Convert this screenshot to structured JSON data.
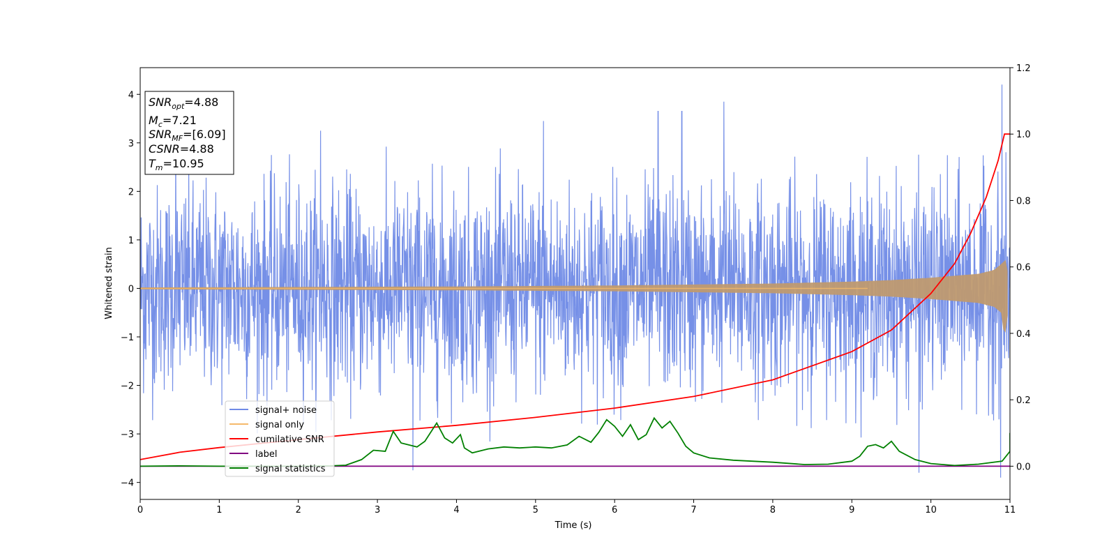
{
  "chart_data": {
    "type": "line",
    "title": "",
    "xlabel": "Time (s)",
    "ylabel": "Whitened strain",
    "y2label": "",
    "xlim": [
      0,
      11
    ],
    "ylim": [
      -4.35,
      4.55
    ],
    "y2lim": [
      -0.1,
      1.2
    ],
    "xticks": [
      0,
      1,
      2,
      3,
      4,
      5,
      6,
      7,
      8,
      9,
      10,
      11
    ],
    "yticks": [
      -4,
      -3,
      -2,
      -1,
      0,
      1,
      2,
      3,
      4
    ],
    "y2ticks": [
      0.0,
      0.2,
      0.4,
      0.6,
      0.8,
      1.0,
      1.2
    ],
    "y2tick_labels": [
      "0.0",
      "0.2",
      "0.4",
      "0.6",
      "0.8",
      "1.0",
      "1.2"
    ],
    "grid": false,
    "legend_position": "lower-left",
    "annotation": {
      "lines": [
        {
          "name": "SNR",
          "sub": "opt",
          "value": "=4.88"
        },
        {
          "name": "M",
          "sub": "c",
          "value": "=7.21"
        },
        {
          "name": "SNR",
          "sub": "MF",
          "value": "=[6.09]"
        },
        {
          "name": "CSNR",
          "sub": "",
          "value": "=4.88"
        },
        {
          "name": "T",
          "sub": "m",
          "value": "=10.95"
        }
      ]
    },
    "series": [
      {
        "name": "signal+ noise",
        "color": "#6f8ae6",
        "axis": "left",
        "description_values": {
          "typical_range": [
            -2.5,
            2.5
          ],
          "peaks": [
            {
              "x": 0.45,
              "y": 3.0
            },
            {
              "x": 2.28,
              "y": 3.25
            },
            {
              "x": 5.1,
              "y": 3.45
            },
            {
              "x": 6.55,
              "y": 3.65
            },
            {
              "x": 6.85,
              "y": 3.65
            },
            {
              "x": 7.38,
              "y": 3.85
            },
            {
              "x": 10.9,
              "y": 4.2
            },
            {
              "x": 3.45,
              "y": -3.75
            },
            {
              "x": 9.85,
              "y": -3.8
            },
            {
              "x": 10.88,
              "y": -3.9
            }
          ]
        }
      },
      {
        "name": "signal only",
        "color": "#f5b96a",
        "axis": "left",
        "points": [
          [
            0,
            0.02
          ],
          [
            2,
            0.03
          ],
          [
            4,
            0.04
          ],
          [
            6,
            0.06
          ],
          [
            7,
            0.08
          ],
          [
            8,
            0.1
          ],
          [
            9,
            0.14
          ],
          [
            9.5,
            0.17
          ],
          [
            10,
            0.22
          ],
          [
            10.3,
            0.26
          ],
          [
            10.6,
            0.3
          ],
          [
            10.8,
            0.38
          ],
          [
            10.9,
            0.52
          ],
          [
            10.95,
            0.6
          ],
          [
            11,
            0.0
          ]
        ]
      },
      {
        "name": "cumilative SNR",
        "color": "#ff0000",
        "axis": "right",
        "points": [
          [
            0,
            0.02
          ],
          [
            0.5,
            0.042
          ],
          [
            1,
            0.056
          ],
          [
            2,
            0.08
          ],
          [
            3,
            0.103
          ],
          [
            4,
            0.123
          ],
          [
            5,
            0.147
          ],
          [
            6,
            0.175
          ],
          [
            7,
            0.21
          ],
          [
            8,
            0.26
          ],
          [
            9,
            0.345
          ],
          [
            9.5,
            0.41
          ],
          [
            10,
            0.52
          ],
          [
            10.3,
            0.61
          ],
          [
            10.5,
            0.7
          ],
          [
            10.7,
            0.81
          ],
          [
            10.85,
            0.92
          ],
          [
            10.93,
            1.0
          ],
          [
            11,
            1.0
          ]
        ]
      },
      {
        "name": "label",
        "color": "#800080",
        "axis": "right",
        "points": [
          [
            0,
            0.0
          ],
          [
            11,
            0.0
          ]
        ]
      },
      {
        "name": "signal statistics",
        "color": "#008000",
        "axis": "right",
        "points": [
          [
            0,
            0.0
          ],
          [
            0.5,
            0.001
          ],
          [
            1,
            0.0
          ],
          [
            1.5,
            0.0
          ],
          [
            2,
            0.0
          ],
          [
            2.4,
            0.001
          ],
          [
            2.6,
            0.003
          ],
          [
            2.8,
            0.02
          ],
          [
            2.95,
            0.048
          ],
          [
            3.1,
            0.045
          ],
          [
            3.2,
            0.105
          ],
          [
            3.3,
            0.07
          ],
          [
            3.5,
            0.058
          ],
          [
            3.6,
            0.075
          ],
          [
            3.75,
            0.13
          ],
          [
            3.85,
            0.085
          ],
          [
            3.95,
            0.07
          ],
          [
            4.05,
            0.095
          ],
          [
            4.1,
            0.055
          ],
          [
            4.2,
            0.04
          ],
          [
            4.4,
            0.052
          ],
          [
            4.6,
            0.058
          ],
          [
            4.8,
            0.055
          ],
          [
            5.0,
            0.058
          ],
          [
            5.2,
            0.055
          ],
          [
            5.4,
            0.064
          ],
          [
            5.55,
            0.09
          ],
          [
            5.7,
            0.072
          ],
          [
            5.8,
            0.102
          ],
          [
            5.9,
            0.14
          ],
          [
            6.0,
            0.12
          ],
          [
            6.1,
            0.09
          ],
          [
            6.2,
            0.125
          ],
          [
            6.3,
            0.08
          ],
          [
            6.4,
            0.095
          ],
          [
            6.5,
            0.145
          ],
          [
            6.6,
            0.115
          ],
          [
            6.7,
            0.135
          ],
          [
            6.8,
            0.1
          ],
          [
            6.9,
            0.06
          ],
          [
            7.0,
            0.04
          ],
          [
            7.2,
            0.025
          ],
          [
            7.5,
            0.018
          ],
          [
            8.0,
            0.012
          ],
          [
            8.4,
            0.005
          ],
          [
            8.7,
            0.006
          ],
          [
            9.0,
            0.015
          ],
          [
            9.1,
            0.03
          ],
          [
            9.2,
            0.06
          ],
          [
            9.3,
            0.065
          ],
          [
            9.4,
            0.055
          ],
          [
            9.5,
            0.075
          ],
          [
            9.6,
            0.045
          ],
          [
            9.8,
            0.02
          ],
          [
            10.0,
            0.008
          ],
          [
            10.3,
            0.002
          ],
          [
            10.6,
            0.006
          ],
          [
            10.9,
            0.015
          ],
          [
            11.0,
            0.045
          ],
          [
            11.0,
            0.1
          ]
        ]
      }
    ]
  }
}
